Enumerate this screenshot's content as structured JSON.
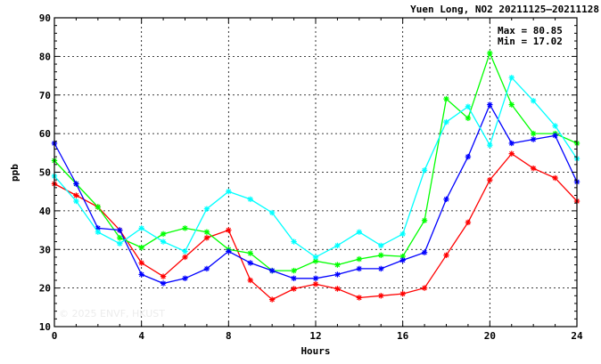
{
  "chart_data": {
    "type": "line",
    "title": "Yuen Long, NO2 20211125–20211128",
    "xlabel": "Hours",
    "ylabel": "ppb",
    "xlim": [
      0,
      24
    ],
    "ylim": [
      10,
      90
    ],
    "x_ticks": [
      0,
      4,
      8,
      12,
      16,
      20,
      24
    ],
    "y_ticks": [
      10,
      20,
      30,
      40,
      50,
      60,
      70,
      80,
      90
    ],
    "grid": true,
    "max_label": "Max = 80.85",
    "min_label": "Min = 17.02",
    "watermark": "© 2025  ENVF, HKUST",
    "x": [
      0,
      1,
      2,
      3,
      4,
      5,
      6,
      7,
      8,
      9,
      10,
      11,
      12,
      13,
      14,
      15,
      16,
      17,
      18,
      19,
      20,
      21,
      22,
      23,
      24
    ],
    "series": [
      {
        "color": "#ff0000",
        "values": [
          47,
          44,
          41,
          35,
          26.5,
          23,
          28,
          33,
          35,
          22,
          17.02,
          19.8,
          21,
          19.8,
          17.5,
          18,
          18.5,
          20,
          28.5,
          37,
          48,
          54.8,
          51,
          48.5,
          42.5
        ]
      },
      {
        "color": "#00ff00",
        "values": [
          53,
          47,
          41,
          33,
          30.5,
          34,
          35.5,
          34.5,
          30,
          29,
          24.5,
          24.5,
          27,
          26,
          27.5,
          28.5,
          28.2,
          37.5,
          69,
          64,
          80.85,
          67.5,
          60,
          60,
          57.5
        ]
      },
      {
        "color": "#0000ff",
        "values": [
          57.5,
          47,
          35.5,
          35,
          23.5,
          21.2,
          22.5,
          25,
          29.5,
          26.5,
          24.5,
          22.5,
          22.5,
          23.5,
          25,
          25,
          27.2,
          29.2,
          43,
          54,
          67.5,
          57.5,
          58.5,
          59.5,
          47.5
        ]
      },
      {
        "color": "#00ffff",
        "values": [
          49,
          42.5,
          34.5,
          31.5,
          35.5,
          32,
          29.5,
          40.5,
          45,
          43,
          39.5,
          32,
          28,
          31,
          34.5,
          31,
          34,
          50.5,
          63,
          67,
          57,
          74.5,
          68.5,
          62,
          53.5
        ]
      }
    ]
  }
}
